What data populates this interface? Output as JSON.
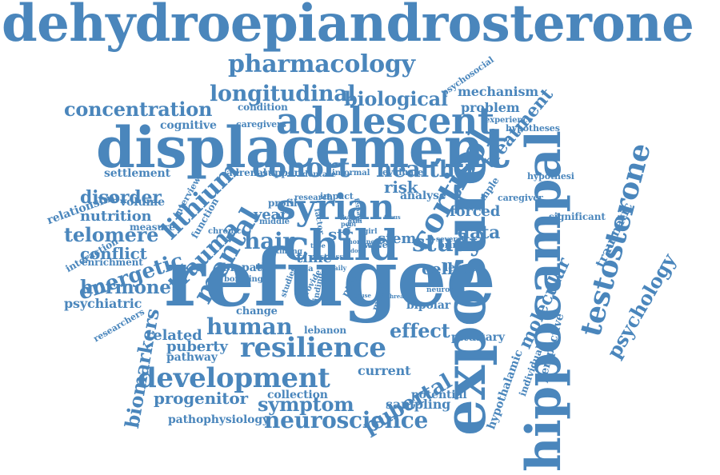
{
  "colors": {
    "word": "#4a86bc",
    "background": "#ffffff"
  },
  "words": [
    "dehydroepiandrosterone",
    "refugee",
    "displacement",
    "exposure",
    "hippocampal",
    "child",
    "adolescent",
    "syrian",
    "cortisol",
    "resilience",
    "development",
    "pharmacology",
    "testosterone",
    "cohort",
    "mental",
    "trauma",
    "longitudinal",
    "neuroscience",
    "human",
    "health",
    "biological",
    "study",
    "concentration",
    "symptom",
    "telomere",
    "energetic",
    "hormone",
    "lithium",
    "molecular",
    "psychology",
    "biomarkers",
    "pubertal",
    "progenitor",
    "puberty",
    "disorder",
    "hair",
    "effect",
    "nutrition",
    "conflict",
    "psychiatric",
    "related",
    "data",
    "treatment",
    "traumatic",
    "forced",
    "pathophysiology",
    "sampling",
    "collection",
    "pathway",
    "current",
    "cell",
    "risk",
    "year",
    "settlement",
    "relationship",
    "volume",
    "measure",
    "interaction",
    "enrichment",
    "biopath",
    "bombing",
    "time",
    "str",
    "stem",
    "analyse",
    "length",
    "bipolar",
    "lebanon",
    "pituitary",
    "potential",
    "individual",
    "perspective",
    "hypothalamic",
    "problem",
    "mechanism",
    "cognitive",
    "condition",
    "caregivers",
    "experience",
    "hypotheses",
    "psychosocial",
    "significant",
    "caregiver",
    "hypothesi",
    "sample",
    "adrenal",
    "support",
    "dentate",
    "informal",
    "evaluate",
    "research",
    "impact",
    "function",
    "interview",
    "profile",
    "middle",
    "chronic",
    "factor",
    "living",
    "pool",
    "adult",
    "girl",
    "wave",
    "several",
    "primary",
    "neuron",
    "model",
    "studies",
    "provide",
    "finding",
    "syria",
    "ptsd",
    "change",
    "researchers",
    "timing",
    "female",
    "focus",
    "threat",
    "cause",
    "nonlinear",
    "arm",
    "axis",
    "dose",
    "type",
    "stress",
    "daily"
  ]
}
